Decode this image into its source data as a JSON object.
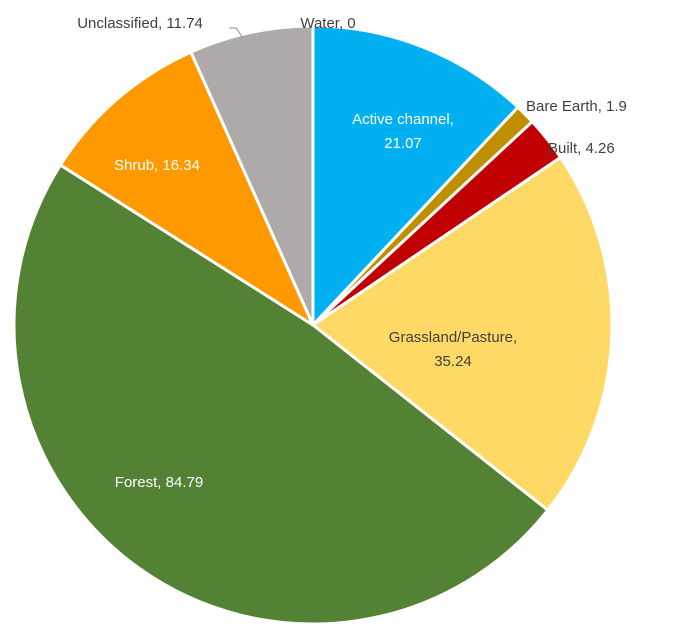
{
  "chart_data": {
    "type": "pie",
    "title": "",
    "data_label_format": "{name}, {value}",
    "slices": [
      {
        "name": "Water",
        "value": 0,
        "color": "#4472C4",
        "label": "Water, 0"
      },
      {
        "name": "Active channel",
        "value": 21.07,
        "color": "#00B0F0",
        "label_lines": [
          "Active channel,",
          "21.07"
        ]
      },
      {
        "name": "Bare Earth",
        "value": 1.9,
        "color": "#BF8F00",
        "label": "Bare Earth, 1.9"
      },
      {
        "name": "Built",
        "value": 4.26,
        "color": "#C00000",
        "label": "Built, 4.26"
      },
      {
        "name": "Grassland/Pasture",
        "value": 35.24,
        "color": "#FFD966",
        "label_lines": [
          "Grassland/Pasture,",
          "35.24"
        ]
      },
      {
        "name": "Forest",
        "value": 84.79,
        "color": "#548235",
        "label": "Forest, 84.79"
      },
      {
        "name": "Shrub",
        "value": 16.34,
        "color": "#FF9900",
        "label": "Shrub, 16.34"
      },
      {
        "name": "Unclassified",
        "value": 11.74,
        "color": "#AEAAAA",
        "label": "Unclassified, 11.74"
      }
    ]
  }
}
